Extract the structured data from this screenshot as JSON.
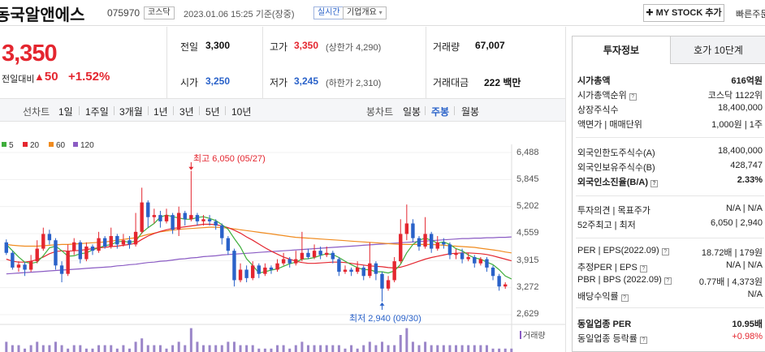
{
  "header": {
    "name": "동국알앤에스",
    "code": "075970",
    "market_badge": "코스닥",
    "timestamp": "2023.01.06 15:25 기준(장중)",
    "realtime_badge": "실시간",
    "company_info": "기업개요",
    "my_stock_button": "MY STOCK 추가",
    "quick_link": "빠른주문"
  },
  "price": {
    "current": "3,350",
    "change_label": "전일대비",
    "change_value": "50",
    "change_pct": "+1.52%"
  },
  "quote": {
    "prev_close_label": "전일",
    "prev_close": "3,300",
    "high_label": "고가",
    "high": "3,350",
    "upper_limit": "(상한가 4,290)",
    "volume_label": "거래량",
    "volume": "67,007",
    "open_label": "시가",
    "open": "3,250",
    "low_label": "저가",
    "low": "3,245",
    "lower_limit": "(하한가 2,310)",
    "amount_label": "거래대금",
    "amount": "222 백만"
  },
  "period_bar": {
    "line_label": "선차트",
    "line_items": [
      "1일",
      "1주일",
      "3개월",
      "1년",
      "3년",
      "5년",
      "10년"
    ],
    "candle_label": "봉차트",
    "candle_items": [
      "일봉",
      "주봉",
      "월봉"
    ],
    "selected_candle": "주봉"
  },
  "legend": [
    {
      "label": "5",
      "color": "#3fae3c"
    },
    {
      "label": "20",
      "color": "#e4262f"
    },
    {
      "label": "60",
      "color": "#f08b1f"
    },
    {
      "label": "120",
      "color": "#8b5cc4"
    }
  ],
  "chart_data": {
    "type": "candlestick",
    "y_ticks": [
      "6,488",
      "5,845",
      "5,202",
      "4,559",
      "3,915",
      "3,272",
      "2,629"
    ],
    "ylim": [
      2629,
      6488
    ],
    "high_annotation": "최고 6,050 (05/27)",
    "low_annotation": "최저 2,940 (09/30)",
    "volume_label": "거래량",
    "candles": [
      {
        "o": 4350,
        "c": 4100,
        "h": 4420,
        "l": 4050
      },
      {
        "o": 4100,
        "c": 3750,
        "h": 4150,
        "l": 3700
      },
      {
        "o": 3750,
        "c": 3820,
        "h": 3900,
        "l": 3650
      },
      {
        "o": 3820,
        "c": 3700,
        "h": 3880,
        "l": 3550
      },
      {
        "o": 3700,
        "c": 3900,
        "h": 4050,
        "l": 3650
      },
      {
        "o": 3900,
        "c": 4200,
        "h": 4400,
        "l": 3850
      },
      {
        "o": 4200,
        "c": 4550,
        "h": 4700,
        "l": 4150
      },
      {
        "o": 4550,
        "c": 4400,
        "h": 4650,
        "l": 4300
      },
      {
        "o": 4400,
        "c": 3800,
        "h": 4450,
        "l": 3700
      },
      {
        "o": 3800,
        "c": 3600,
        "h": 3900,
        "l": 3400
      },
      {
        "o": 3600,
        "c": 4150,
        "h": 4300,
        "l": 3550
      },
      {
        "o": 4150,
        "c": 4350,
        "h": 4450,
        "l": 4050
      },
      {
        "o": 4350,
        "c": 3950,
        "h": 4400,
        "l": 3850
      },
      {
        "o": 3950,
        "c": 4250,
        "h": 4350,
        "l": 3900
      },
      {
        "o": 4250,
        "c": 4150,
        "h": 4300,
        "l": 4050
      },
      {
        "o": 4150,
        "c": 4450,
        "h": 4600,
        "l": 4100
      },
      {
        "o": 4450,
        "c": 4250,
        "h": 4500,
        "l": 4200
      },
      {
        "o": 4250,
        "c": 4500,
        "h": 4700,
        "l": 4200
      },
      {
        "o": 4500,
        "c": 4300,
        "h": 4550,
        "l": 4200
      },
      {
        "o": 4300,
        "c": 4400,
        "h": 4550,
        "l": 4250
      },
      {
        "o": 4400,
        "c": 4300,
        "h": 4500,
        "l": 4200
      },
      {
        "o": 4300,
        "c": 4600,
        "h": 5050,
        "l": 4250
      },
      {
        "o": 4600,
        "c": 5300,
        "h": 5650,
        "l": 4550
      },
      {
        "o": 5300,
        "c": 4950,
        "h": 5350,
        "l": 4700
      },
      {
        "o": 4950,
        "c": 5000,
        "h": 5150,
        "l": 4800
      },
      {
        "o": 5000,
        "c": 4850,
        "h": 5100,
        "l": 4700
      },
      {
        "o": 4850,
        "c": 5000,
        "h": 5150,
        "l": 4800
      },
      {
        "o": 5000,
        "c": 4650,
        "h": 5050,
        "l": 4550
      },
      {
        "o": 4650,
        "c": 5050,
        "h": 5200,
        "l": 4500
      },
      {
        "o": 5050,
        "c": 4900,
        "h": 5100,
        "l": 4750
      },
      {
        "o": 4900,
        "c": 5000,
        "h": 6050,
        "l": 4850
      },
      {
        "o": 5000,
        "c": 4850,
        "h": 5050,
        "l": 4750
      },
      {
        "o": 4850,
        "c": 4900,
        "h": 5000,
        "l": 4750
      },
      {
        "o": 4900,
        "c": 4850,
        "h": 5000,
        "l": 4750
      },
      {
        "o": 4850,
        "c": 4750,
        "h": 4900,
        "l": 4650
      },
      {
        "o": 4750,
        "c": 4450,
        "h": 4800,
        "l": 4300
      },
      {
        "o": 4450,
        "c": 4150,
        "h": 4500,
        "l": 4050
      },
      {
        "o": 4150,
        "c": 3450,
        "h": 4200,
        "l": 3300
      },
      {
        "o": 3450,
        "c": 3700,
        "h": 3850,
        "l": 3400
      },
      {
        "o": 3700,
        "c": 3500,
        "h": 3800,
        "l": 3400
      },
      {
        "o": 3500,
        "c": 3800,
        "h": 3900,
        "l": 3450
      },
      {
        "o": 3800,
        "c": 3600,
        "h": 3850,
        "l": 3500
      },
      {
        "o": 3600,
        "c": 3750,
        "h": 3850,
        "l": 3550
      },
      {
        "o": 3750,
        "c": 3700,
        "h": 3800,
        "l": 3600
      },
      {
        "o": 3700,
        "c": 3850,
        "h": 3950,
        "l": 3650
      },
      {
        "o": 3850,
        "c": 3950,
        "h": 4100,
        "l": 3800
      },
      {
        "o": 3950,
        "c": 3850,
        "h": 4000,
        "l": 3750
      },
      {
        "o": 3850,
        "c": 3950,
        "h": 4150,
        "l": 3800
      },
      {
        "o": 3950,
        "c": 4100,
        "h": 4600,
        "l": 3900
      },
      {
        "o": 4100,
        "c": 4000,
        "h": 4200,
        "l": 3950
      },
      {
        "o": 4000,
        "c": 4150,
        "h": 4300,
        "l": 3950
      },
      {
        "o": 4150,
        "c": 4050,
        "h": 4250,
        "l": 3950
      },
      {
        "o": 4050,
        "c": 4100,
        "h": 4250,
        "l": 4000
      },
      {
        "o": 4100,
        "c": 3950,
        "h": 4150,
        "l": 3850
      },
      {
        "o": 3950,
        "c": 3650,
        "h": 4000,
        "l": 3550
      },
      {
        "o": 3650,
        "c": 3700,
        "h": 3800,
        "l": 3600
      },
      {
        "o": 3700,
        "c": 3650,
        "h": 3750,
        "l": 3550
      },
      {
        "o": 3650,
        "c": 3750,
        "h": 3900,
        "l": 3600
      },
      {
        "o": 3750,
        "c": 3550,
        "h": 3800,
        "l": 3450
      },
      {
        "o": 3550,
        "c": 3850,
        "h": 4350,
        "l": 3500
      },
      {
        "o": 3850,
        "c": 3600,
        "h": 3900,
        "l": 3450
      },
      {
        "o": 3600,
        "c": 3250,
        "h": 3650,
        "l": 2940
      },
      {
        "o": 3250,
        "c": 3450,
        "h": 3550,
        "l": 3200
      },
      {
        "o": 3450,
        "c": 3900,
        "h": 4000,
        "l": 3400
      },
      {
        "o": 3900,
        "c": 4550,
        "h": 4900,
        "l": 3850
      },
      {
        "o": 4550,
        "c": 4800,
        "h": 5250,
        "l": 4400
      },
      {
        "o": 4800,
        "c": 4450,
        "h": 4900,
        "l": 4350
      },
      {
        "o": 4450,
        "c": 4250,
        "h": 4500,
        "l": 4150
      },
      {
        "o": 4250,
        "c": 4550,
        "h": 4950,
        "l": 4200
      },
      {
        "o": 4550,
        "c": 4200,
        "h": 4600,
        "l": 4100
      },
      {
        "o": 4200,
        "c": 4350,
        "h": 4500,
        "l": 4150
      },
      {
        "o": 4350,
        "c": 4300,
        "h": 4450,
        "l": 4200
      },
      {
        "o": 4300,
        "c": 4050,
        "h": 4350,
        "l": 3950
      },
      {
        "o": 4050,
        "c": 4100,
        "h": 4200,
        "l": 3950
      },
      {
        "o": 4100,
        "c": 3950,
        "h": 4200,
        "l": 3850
      },
      {
        "o": 3950,
        "c": 4000,
        "h": 4100,
        "l": 3900
      },
      {
        "o": 4000,
        "c": 3850,
        "h": 4050,
        "l": 3750
      },
      {
        "o": 3850,
        "c": 3950,
        "h": 4000,
        "l": 3800
      },
      {
        "o": 3950,
        "c": 3750,
        "h": 4000,
        "l": 3650
      },
      {
        "o": 3750,
        "c": 3550,
        "h": 3800,
        "l": 3450
      },
      {
        "o": 3550,
        "c": 3300,
        "h": 3600,
        "l": 3200
      },
      {
        "o": 3300,
        "c": 3350,
        "h": 3400,
        "l": 3245
      }
    ],
    "ma5": [
      4300,
      4150,
      4000,
      3880,
      3850,
      3880,
      4030,
      4220,
      4260,
      4150,
      4020,
      4030,
      4080,
      4100,
      4170,
      4220,
      4270,
      4300,
      4360,
      4380,
      4350,
      4380,
      4580,
      4700,
      4800,
      4950,
      5000,
      4960,
      4930,
      4900,
      4900,
      4940,
      4960,
      4920,
      4870,
      4770,
      4660,
      4440,
      4240,
      3960,
      3800,
      3620,
      3650,
      3690,
      3720,
      3780,
      3840,
      3880,
      3950,
      3960,
      3990,
      4040,
      4080,
      4060,
      3990,
      3900,
      3820,
      3750,
      3700,
      3700,
      3650,
      3650,
      3620,
      3670,
      3830,
      4100,
      4300,
      4400,
      4450,
      4400,
      4330,
      4360,
      4300,
      4200,
      4150,
      4050,
      3980,
      3950,
      3880,
      3820,
      3700,
      3550,
      3480
    ],
    "ma20": [
      3950,
      3900,
      3880,
      3880,
      3900,
      3940,
      4000,
      4080,
      4130,
      4150,
      4140,
      4150,
      4160,
      4180,
      4200,
      4220,
      4230,
      4250,
      4260,
      4280,
      4300,
      4330,
      4420,
      4500,
      4560,
      4610,
      4650,
      4680,
      4700,
      4720,
      4740,
      4760,
      4780,
      4780,
      4770,
      4740,
      4700,
      4640,
      4570,
      4480,
      4400,
      4310,
      4220,
      4140,
      4070,
      4000,
      3950,
      3900,
      3870,
      3850,
      3850,
      3860,
      3870,
      3880,
      3880,
      3870,
      3850,
      3830,
      3810,
      3790,
      3780,
      3770,
      3750,
      3740,
      3760,
      3800,
      3850,
      3900,
      3950,
      3990,
      4020,
      4050,
      4080,
      4090,
      4100,
      4100,
      4090,
      4080,
      4060,
      4030,
      3990,
      3950,
      3910
    ],
    "ma60": [
      4300,
      4280,
      4270,
      4260,
      4260,
      4260,
      4270,
      4280,
      4290,
      4300,
      4300,
      4310,
      4320,
      4330,
      4340,
      4350,
      4360,
      4380,
      4400,
      4420,
      4440,
      4460,
      4500,
      4540,
      4570,
      4600,
      4620,
      4640,
      4660,
      4670,
      4680,
      4690,
      4700,
      4710,
      4710,
      4700,
      4690,
      4670,
      4650,
      4630,
      4610,
      4590,
      4570,
      4550,
      4530,
      4510,
      4490,
      4470,
      4460,
      4450,
      4440,
      4430,
      4420,
      4410,
      4400,
      4390,
      4380,
      4370,
      4360,
      4350,
      4340,
      4330,
      4320,
      4310,
      4300,
      4300,
      4300,
      4300,
      4300,
      4300,
      4290,
      4280,
      4270,
      4260,
      4250,
      4240,
      4230,
      4210,
      4190,
      4170,
      4150,
      4120,
      4100
    ],
    "ma120": [
      3600,
      3610,
      3620,
      3630,
      3640,
      3650,
      3660,
      3670,
      3680,
      3690,
      3700,
      3710,
      3720,
      3730,
      3740,
      3750,
      3760,
      3770,
      3790,
      3800,
      3820,
      3830,
      3850,
      3870,
      3880,
      3900,
      3910,
      3930,
      3950,
      3960,
      3980,
      3990,
      4010,
      4020,
      4030,
      4050,
      4060,
      4070,
      4080,
      4090,
      4100,
      4110,
      4120,
      4130,
      4140,
      4150,
      4160,
      4170,
      4180,
      4190,
      4200,
      4210,
      4220,
      4230,
      4240,
      4250,
      4260,
      4270,
      4280,
      4290,
      4300,
      4310,
      4320,
      4330,
      4340,
      4350,
      4360,
      4370,
      4380,
      4390,
      4400,
      4410,
      4420,
      4430,
      4440,
      4440,
      4450,
      4450,
      4460,
      4460,
      4470,
      4470,
      4480
    ],
    "volume": [
      3,
      2,
      2,
      1,
      2,
      3,
      2,
      2,
      3,
      2,
      1,
      2,
      2,
      1,
      1,
      2,
      2,
      2,
      1,
      2,
      1,
      3,
      4,
      2,
      2,
      2,
      1,
      2,
      3,
      2,
      7,
      3,
      2,
      2,
      2,
      2,
      3,
      3,
      2,
      2,
      2,
      1,
      1,
      1,
      2,
      2,
      1,
      2,
      3,
      2,
      2,
      2,
      2,
      2,
      2,
      1,
      2,
      1,
      2,
      3,
      2,
      3,
      2,
      2,
      5,
      7,
      3,
      2,
      3,
      2,
      2,
      2,
      2,
      2,
      2,
      2,
      2,
      2,
      2,
      1,
      1,
      1,
      1
    ]
  },
  "right_panel": {
    "tabs": [
      "투자정보",
      "호가 10단계"
    ],
    "rows": [
      {
        "label": "시가총액",
        "value": "616억원",
        "bold": true
      },
      {
        "label": "시가총액순위",
        "value": "코스닥 1122위"
      },
      {
        "label": "상장주식수",
        "value": "18,400,000"
      },
      {
        "label": "액면가 | 매매단위",
        "value": "1,000원 | 1주"
      },
      {
        "label": "외국인한도주식수(A)",
        "value": "18,400,000"
      },
      {
        "label": "외국인보유주식수(B)",
        "value": "428,747"
      },
      {
        "label": "외국인소진율(B/A)",
        "value": "2.33%",
        "bold": true
      },
      {
        "label": "투자의견 | 목표주가",
        "value": "N/A | N/A"
      },
      {
        "label": "52주최고 | 최저",
        "value": "6,050 | 2,940"
      },
      {
        "label": "PER | EPS(2022.09)",
        "value": "18.72배 | 179원"
      },
      {
        "label": "추정PER | EPS",
        "value": "N/A | N/A"
      },
      {
        "label": "PBR | BPS (2022.09)",
        "value": "0.77배 | 4,373원"
      },
      {
        "label": "배당수익률",
        "value": "N/A"
      },
      {
        "label": "동일업종 PER",
        "value": "10.95배",
        "bold": true
      },
      {
        "label": "동일업종 등락률",
        "value": "+0.98%",
        "red": true
      }
    ]
  }
}
